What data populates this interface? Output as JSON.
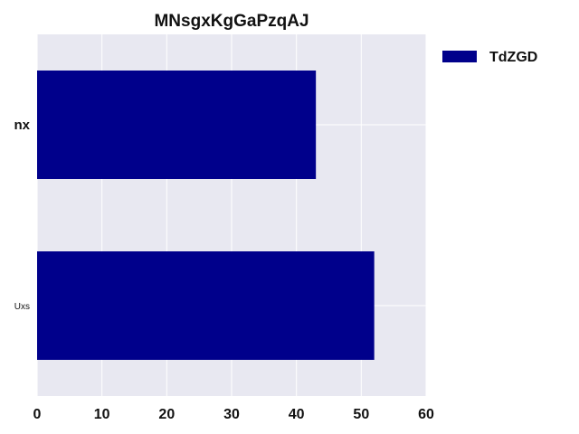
{
  "chart_data": {
    "type": "bar",
    "orientation": "horizontal",
    "title": "MNsgxKgGaPzqAJ",
    "xlabel": "",
    "ylabel": "",
    "categories": [
      "nx",
      "Uxs"
    ],
    "series": [
      {
        "name": "TdZGD",
        "values": [
          43,
          52
        ],
        "color": "#00008b"
      }
    ],
    "xlim": [
      0,
      60
    ],
    "xticks": [
      0,
      10,
      20,
      30,
      40,
      50,
      60
    ],
    "grid": true,
    "legend": "right"
  },
  "colors": {
    "plot_background": "#e8e8f1",
    "grid": "#ffffff",
    "bar": "#00008b"
  }
}
